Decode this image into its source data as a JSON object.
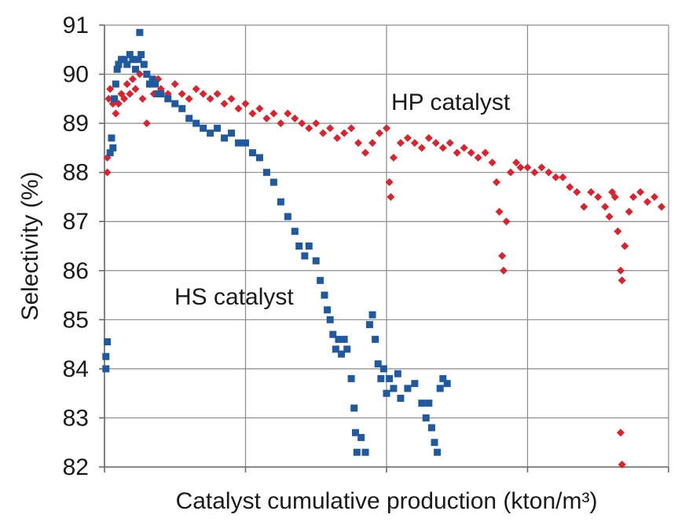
{
  "chart_data": {
    "type": "scatter",
    "title": "",
    "xlabel": "Catalyst cumulative production (kton/m³)",
    "ylabel": "Selectivity (%)",
    "ylim": [
      82,
      91
    ],
    "xlim": [
      0,
      4
    ],
    "yticks": [
      "82",
      "83",
      "84",
      "85",
      "86",
      "87",
      "88",
      "89",
      "90",
      "91"
    ],
    "xtick_positions": [
      0,
      1,
      2,
      3,
      4
    ],
    "x_tick_labels_shown": false,
    "grid": true,
    "legend": "none",
    "annotations": [
      {
        "text": "HP catalyst",
        "series": "HP catalyst"
      },
      {
        "text": "HS catalyst",
        "series": "HS catalyst"
      }
    ],
    "series": [
      {
        "name": "HP catalyst",
        "marker": "diamond",
        "color": "#e0202a",
        "points": [
          [
            0.02,
            88.0
          ],
          [
            0.02,
            88.3
          ],
          [
            0.03,
            89.5
          ],
          [
            0.04,
            89.7
          ],
          [
            0.06,
            89.4
          ],
          [
            0.08,
            89.2
          ],
          [
            0.1,
            89.4
          ],
          [
            0.12,
            89.6
          ],
          [
            0.14,
            89.5
          ],
          [
            0.16,
            89.8
          ],
          [
            0.18,
            89.6
          ],
          [
            0.2,
            89.9
          ],
          [
            0.22,
            89.7
          ],
          [
            0.25,
            90.0
          ],
          [
            0.27,
            89.5
          ],
          [
            0.3,
            89.0
          ],
          [
            0.32,
            89.8
          ],
          [
            0.35,
            89.6
          ],
          [
            0.38,
            89.9
          ],
          [
            0.4,
            89.7
          ],
          [
            0.45,
            89.6
          ],
          [
            0.5,
            89.8
          ],
          [
            0.55,
            89.6
          ],
          [
            0.6,
            89.5
          ],
          [
            0.65,
            89.7
          ],
          [
            0.7,
            89.6
          ],
          [
            0.75,
            89.5
          ],
          [
            0.8,
            89.6
          ],
          [
            0.85,
            89.4
          ],
          [
            0.9,
            89.5
          ],
          [
            0.95,
            89.3
          ],
          [
            1.0,
            89.4
          ],
          [
            1.05,
            89.2
          ],
          [
            1.1,
            89.3
          ],
          [
            1.15,
            89.1
          ],
          [
            1.2,
            89.2
          ],
          [
            1.25,
            89.0
          ],
          [
            1.3,
            89.2
          ],
          [
            1.35,
            89.1
          ],
          [
            1.4,
            89.0
          ],
          [
            1.45,
            88.9
          ],
          [
            1.5,
            89.0
          ],
          [
            1.55,
            88.8
          ],
          [
            1.6,
            88.9
          ],
          [
            1.65,
            88.7
          ],
          [
            1.7,
            88.8
          ],
          [
            1.75,
            88.9
          ],
          [
            1.8,
            88.6
          ],
          [
            1.85,
            88.4
          ],
          [
            1.9,
            88.6
          ],
          [
            1.95,
            88.8
          ],
          [
            2.0,
            88.9
          ],
          [
            2.02,
            87.8
          ],
          [
            2.03,
            87.5
          ],
          [
            2.05,
            88.3
          ],
          [
            2.1,
            88.6
          ],
          [
            2.15,
            88.7
          ],
          [
            2.2,
            88.6
          ],
          [
            2.25,
            88.5
          ],
          [
            2.3,
            88.7
          ],
          [
            2.35,
            88.6
          ],
          [
            2.4,
            88.5
          ],
          [
            2.45,
            88.6
          ],
          [
            2.5,
            88.4
          ],
          [
            2.55,
            88.5
          ],
          [
            2.6,
            88.4
          ],
          [
            2.65,
            88.3
          ],
          [
            2.7,
            88.4
          ],
          [
            2.75,
            88.2
          ],
          [
            2.78,
            87.8
          ],
          [
            2.8,
            87.2
          ],
          [
            2.82,
            86.3
          ],
          [
            2.83,
            86.0
          ],
          [
            2.85,
            87.0
          ],
          [
            2.88,
            88.0
          ],
          [
            2.92,
            88.2
          ],
          [
            2.95,
            88.1
          ],
          [
            3.0,
            88.1
          ],
          [
            3.05,
            88.0
          ],
          [
            3.1,
            88.1
          ],
          [
            3.15,
            88.0
          ],
          [
            3.2,
            87.9
          ],
          [
            3.25,
            87.9
          ],
          [
            3.3,
            87.7
          ],
          [
            3.35,
            87.6
          ],
          [
            3.4,
            87.3
          ],
          [
            3.45,
            87.6
          ],
          [
            3.5,
            87.5
          ],
          [
            3.55,
            87.3
          ],
          [
            3.58,
            87.1
          ],
          [
            3.6,
            87.6
          ],
          [
            3.62,
            87.5
          ],
          [
            3.64,
            86.8
          ],
          [
            3.66,
            86.0
          ],
          [
            3.67,
            85.8
          ],
          [
            3.69,
            86.5
          ],
          [
            3.72,
            87.2
          ],
          [
            3.75,
            87.5
          ],
          [
            3.8,
            87.6
          ],
          [
            3.85,
            87.4
          ],
          [
            3.9,
            87.5
          ],
          [
            3.95,
            87.3
          ],
          [
            3.66,
            82.7
          ],
          [
            3.67,
            82.05
          ]
        ]
      },
      {
        "name": "HS catalyst",
        "marker": "square",
        "color": "#1f5aa0",
        "points": [
          [
            0.01,
            84.0
          ],
          [
            0.01,
            84.25
          ],
          [
            0.02,
            84.55
          ],
          [
            0.04,
            88.4
          ],
          [
            0.05,
            88.7
          ],
          [
            0.06,
            88.5
          ],
          [
            0.07,
            89.5
          ],
          [
            0.08,
            89.8
          ],
          [
            0.09,
            90.1
          ],
          [
            0.1,
            90.2
          ],
          [
            0.12,
            90.3
          ],
          [
            0.14,
            90.3
          ],
          [
            0.16,
            90.2
          ],
          [
            0.18,
            90.4
          ],
          [
            0.2,
            90.3
          ],
          [
            0.22,
            90.1
          ],
          [
            0.24,
            90.3
          ],
          [
            0.26,
            90.4
          ],
          [
            0.28,
            90.2
          ],
          [
            0.3,
            90.0
          ],
          [
            0.32,
            89.8
          ],
          [
            0.34,
            89.9
          ],
          [
            0.36,
            89.8
          ],
          [
            0.38,
            89.6
          ],
          [
            0.4,
            89.6
          ],
          [
            0.45,
            89.5
          ],
          [
            0.5,
            89.4
          ],
          [
            0.55,
            89.3
          ],
          [
            0.6,
            89.1
          ],
          [
            0.65,
            89.0
          ],
          [
            0.7,
            88.9
          ],
          [
            0.75,
            88.8
          ],
          [
            0.8,
            88.9
          ],
          [
            0.85,
            88.7
          ],
          [
            0.9,
            88.8
          ],
          [
            0.95,
            88.6
          ],
          [
            1.0,
            88.6
          ],
          [
            1.05,
            88.4
          ],
          [
            1.1,
            88.3
          ],
          [
            1.15,
            88.0
          ],
          [
            1.2,
            87.8
          ],
          [
            1.25,
            87.4
          ],
          [
            1.3,
            87.1
          ],
          [
            1.35,
            86.8
          ],
          [
            1.38,
            86.5
          ],
          [
            1.42,
            86.3
          ],
          [
            1.45,
            86.5
          ],
          [
            1.5,
            86.2
          ],
          [
            1.53,
            85.8
          ],
          [
            1.56,
            85.5
          ],
          [
            1.58,
            85.2
          ],
          [
            1.6,
            85.0
          ],
          [
            1.62,
            84.7
          ],
          [
            1.64,
            84.4
          ],
          [
            1.66,
            84.6
          ],
          [
            1.68,
            84.3
          ],
          [
            1.7,
            84.6
          ],
          [
            1.72,
            84.4
          ],
          [
            1.75,
            83.8
          ],
          [
            1.77,
            83.2
          ],
          [
            1.78,
            82.7
          ],
          [
            1.79,
            82.3
          ],
          [
            1.82,
            82.6
          ],
          [
            1.85,
            82.3
          ],
          [
            1.88,
            84.9
          ],
          [
            1.9,
            85.1
          ],
          [
            1.92,
            84.6
          ],
          [
            1.94,
            84.1
          ],
          [
            1.96,
            83.8
          ],
          [
            1.98,
            84.0
          ],
          [
            2.0,
            83.5
          ],
          [
            2.02,
            83.8
          ],
          [
            2.05,
            83.6
          ],
          [
            2.08,
            83.9
          ],
          [
            2.1,
            83.4
          ],
          [
            2.15,
            83.6
          ],
          [
            2.2,
            83.7
          ],
          [
            2.25,
            83.3
          ],
          [
            2.28,
            83.0
          ],
          [
            2.3,
            83.3
          ],
          [
            2.32,
            82.8
          ],
          [
            2.34,
            82.5
          ],
          [
            2.36,
            82.3
          ],
          [
            2.38,
            83.6
          ],
          [
            2.4,
            83.8
          ],
          [
            2.43,
            83.7
          ],
          [
            0.25,
            90.85
          ]
        ]
      }
    ]
  }
}
